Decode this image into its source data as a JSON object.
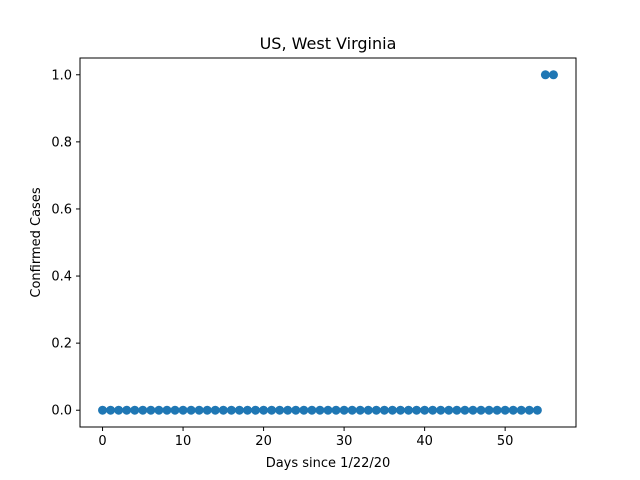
{
  "chart_data": {
    "type": "scatter",
    "title": "US, West Virginia",
    "xlabel": "Days since 1/22/20",
    "ylabel": "Confirmed Cases",
    "xlim": [
      -2.8,
      58.8
    ],
    "ylim": [
      -0.05,
      1.05
    ],
    "xticks": [
      0,
      10,
      20,
      30,
      40,
      50
    ],
    "yticks": [
      0.0,
      0.2,
      0.4,
      0.6,
      0.8,
      1.0
    ],
    "ytick_labels": [
      "0.0",
      "0.2",
      "0.4",
      "0.6",
      "0.8",
      "1.0"
    ],
    "grid": false,
    "color": "#1f77b4",
    "x": [
      0,
      1,
      2,
      3,
      4,
      5,
      6,
      7,
      8,
      9,
      10,
      11,
      12,
      13,
      14,
      15,
      16,
      17,
      18,
      19,
      20,
      21,
      22,
      23,
      24,
      25,
      26,
      27,
      28,
      29,
      30,
      31,
      32,
      33,
      34,
      35,
      36,
      37,
      38,
      39,
      40,
      41,
      42,
      43,
      44,
      45,
      46,
      47,
      48,
      49,
      50,
      51,
      52,
      53,
      54,
      55,
      56
    ],
    "y": [
      0,
      0,
      0,
      0,
      0,
      0,
      0,
      0,
      0,
      0,
      0,
      0,
      0,
      0,
      0,
      0,
      0,
      0,
      0,
      0,
      0,
      0,
      0,
      0,
      0,
      0,
      0,
      0,
      0,
      0,
      0,
      0,
      0,
      0,
      0,
      0,
      0,
      0,
      0,
      0,
      0,
      0,
      0,
      0,
      0,
      0,
      0,
      0,
      0,
      0,
      0,
      0,
      0,
      0,
      0,
      1,
      1
    ]
  }
}
